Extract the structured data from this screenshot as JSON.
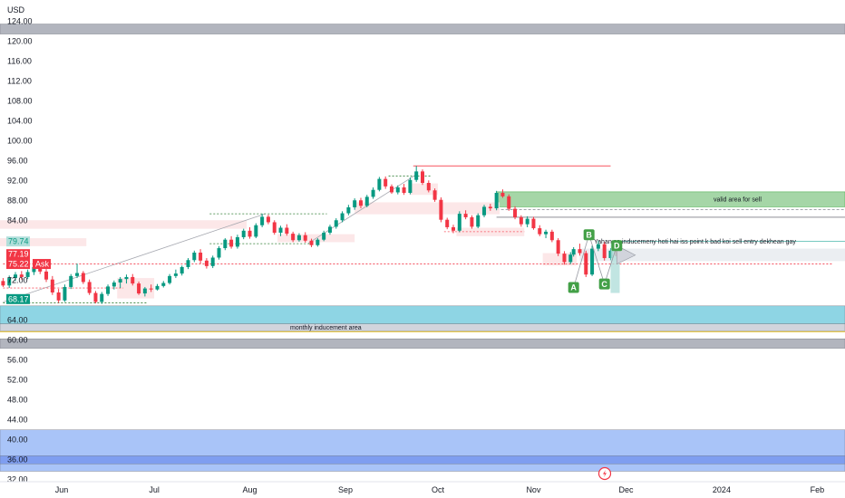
{
  "chart_data": {
    "type": "candlestick",
    "currency": "USD",
    "y_ticks": [
      124,
      120,
      116,
      112,
      108,
      104,
      100,
      96,
      92,
      88,
      84,
      80,
      76,
      72,
      68,
      64,
      60,
      56,
      52,
      48,
      44,
      40,
      36,
      32
    ],
    "y_tick_labels": [
      "124.00",
      "120.00",
      "116.00",
      "112.00",
      "108.00",
      "104.00",
      "100.00",
      "96.00",
      "92.00",
      "88.00",
      "84.00",
      "",
      "",
      "72.00",
      "",
      "64.00",
      "60.00",
      "56.00",
      "52.00",
      "48.00",
      "44.00",
      "40.00",
      "36.00",
      "32.00"
    ],
    "ylim": [
      31.5,
      127.5
    ],
    "x_labels": [
      "Jun",
      "Jul",
      "Aug",
      "Sep",
      "Oct",
      "Nov",
      "Dec",
      "2024",
      "Feb"
    ],
    "x_label_days": [
      0,
      30,
      61,
      92,
      122,
      153,
      183,
      214,
      245
    ],
    "xlim": [
      -20,
      254
    ],
    "price_labels": [
      {
        "value": 79.74,
        "text": "79.74",
        "color": "#26a69a",
        "light": true
      },
      {
        "value": 77.19,
        "text": "77.19",
        "color": "#f23645"
      },
      {
        "value": 75.22,
        "text": "75.22",
        "color": "#f23645",
        "extra": "Ask"
      },
      {
        "value": 68.17,
        "text": "68.17",
        "color": "#089981"
      }
    ],
    "zones": [
      {
        "from": 121.4,
        "to": 123.4,
        "color": "#b2b5be",
        "label": ""
      },
      {
        "from": 58.3,
        "to": 60.2,
        "color": "#b2b5be",
        "label": ""
      },
      {
        "from": 63.2,
        "to": 66.8,
        "color": "#8ed5e4",
        "label": ""
      },
      {
        "from": 61.8,
        "to": 63.2,
        "color": "#d1d4dc",
        "label": "monthly inducement area"
      },
      {
        "from": 36.1,
        "to": 41.9,
        "color": "#a9c4f8",
        "label": ""
      },
      {
        "from": 33.6,
        "to": 36.1,
        "color": "#a9c4f8",
        "label": ""
      },
      {
        "from": 35.1,
        "to": 36.7,
        "color": "#7f9ef0",
        "label": ""
      }
    ],
    "sell_zone": {
      "from": 86.7,
      "to": 89.7,
      "start_day": 141,
      "label": "valid area for sell"
    },
    "swing_high_level": 94.9,
    "annotation": "Yahan se inducemeny hoti hai iss point k bad koi sell entry dekhean gay",
    "pattern_points": [
      {
        "label": "A",
        "day": 166,
        "value": 70.5
      },
      {
        "label": "B",
        "day": 171,
        "value": 81.1
      },
      {
        "label": "C",
        "day": 176,
        "value": 71.2
      },
      {
        "label": "D",
        "day": 180,
        "value": 78.9
      }
    ],
    "candles": [
      {
        "day": -19,
        "o": 71.8,
        "h": 72.4,
        "l": 70.6,
        "c": 70.9
      },
      {
        "day": -17,
        "o": 70.9,
        "h": 72.9,
        "l": 70.4,
        "c": 72.4
      },
      {
        "day": -15,
        "o": 72.4,
        "h": 73.6,
        "l": 71.8,
        "c": 73.1
      },
      {
        "day": -13,
        "o": 73.1,
        "h": 73.8,
        "l": 72.1,
        "c": 72.6
      },
      {
        "day": -11,
        "o": 72.6,
        "h": 74.1,
        "l": 72.2,
        "c": 73.6
      },
      {
        "day": -9,
        "o": 73.6,
        "h": 74.9,
        "l": 73.0,
        "c": 74.6
      },
      {
        "day": -7,
        "o": 74.6,
        "h": 75.2,
        "l": 73.2,
        "c": 73.7
      },
      {
        "day": -5,
        "o": 73.7,
        "h": 74.2,
        "l": 71.6,
        "c": 72.1
      },
      {
        "day": -3,
        "o": 72.1,
        "h": 72.8,
        "l": 69.0,
        "c": 69.5
      },
      {
        "day": -1,
        "o": 69.5,
        "h": 70.2,
        "l": 67.4,
        "c": 67.9
      },
      {
        "day": 1,
        "o": 67.9,
        "h": 71.1,
        "l": 67.6,
        "c": 70.6
      },
      {
        "day": 3,
        "o": 70.6,
        "h": 73.2,
        "l": 70.2,
        "c": 72.8
      },
      {
        "day": 5,
        "o": 72.8,
        "h": 75.3,
        "l": 72.4,
        "c": 73.4
      },
      {
        "day": 7,
        "o": 73.4,
        "h": 73.8,
        "l": 71.2,
        "c": 71.6
      },
      {
        "day": 9,
        "o": 71.6,
        "h": 72.1,
        "l": 69.0,
        "c": 69.4
      },
      {
        "day": 11,
        "o": 69.4,
        "h": 69.8,
        "l": 67.3,
        "c": 67.6
      },
      {
        "day": 13,
        "o": 67.6,
        "h": 69.6,
        "l": 67.2,
        "c": 69.2
      },
      {
        "day": 15,
        "o": 69.2,
        "h": 71.1,
        "l": 68.8,
        "c": 70.7
      },
      {
        "day": 17,
        "o": 70.7,
        "h": 71.9,
        "l": 70.1,
        "c": 71.5
      },
      {
        "day": 19,
        "o": 71.5,
        "h": 72.6,
        "l": 70.4,
        "c": 72.2
      },
      {
        "day": 21,
        "o": 72.2,
        "h": 73.1,
        "l": 71.3,
        "c": 72.6
      },
      {
        "day": 23,
        "o": 72.6,
        "h": 73.2,
        "l": 70.9,
        "c": 71.3
      },
      {
        "day": 25,
        "o": 71.3,
        "h": 71.7,
        "l": 69.0,
        "c": 69.3
      },
      {
        "day": 27,
        "o": 69.3,
        "h": 70.6,
        "l": 68.7,
        "c": 70.3
      },
      {
        "day": 29,
        "o": 70.3,
        "h": 71.1,
        "l": 69.6,
        "c": 70.1
      },
      {
        "day": 31,
        "o": 70.1,
        "h": 71.2,
        "l": 69.9,
        "c": 70.8
      },
      {
        "day": 33,
        "o": 70.8,
        "h": 71.8,
        "l": 70.5,
        "c": 71.4
      },
      {
        "day": 35,
        "o": 71.4,
        "h": 73.2,
        "l": 71.1,
        "c": 72.8
      },
      {
        "day": 37,
        "o": 72.8,
        "h": 74.1,
        "l": 72.4,
        "c": 73.3
      },
      {
        "day": 39,
        "o": 73.3,
        "h": 74.9,
        "l": 72.9,
        "c": 74.6
      },
      {
        "day": 41,
        "o": 74.6,
        "h": 76.4,
        "l": 74.2,
        "c": 76.0
      },
      {
        "day": 43,
        "o": 76.0,
        "h": 77.9,
        "l": 75.6,
        "c": 77.5
      },
      {
        "day": 45,
        "o": 77.5,
        "h": 78.2,
        "l": 75.3,
        "c": 75.9
      },
      {
        "day": 47,
        "o": 75.9,
        "h": 76.4,
        "l": 74.3,
        "c": 74.8
      },
      {
        "day": 49,
        "o": 74.8,
        "h": 76.9,
        "l": 74.4,
        "c": 76.5
      },
      {
        "day": 51,
        "o": 76.5,
        "h": 78.8,
        "l": 76.1,
        "c": 78.4
      },
      {
        "day": 53,
        "o": 78.4,
        "h": 80.4,
        "l": 78.0,
        "c": 80.1
      },
      {
        "day": 55,
        "o": 80.1,
        "h": 80.8,
        "l": 78.3,
        "c": 78.7
      },
      {
        "day": 57,
        "o": 78.7,
        "h": 81.1,
        "l": 78.3,
        "c": 80.6
      },
      {
        "day": 59,
        "o": 80.6,
        "h": 82.3,
        "l": 80.2,
        "c": 81.9
      },
      {
        "day": 61,
        "o": 81.9,
        "h": 82.6,
        "l": 80.3,
        "c": 80.7
      },
      {
        "day": 63,
        "o": 80.7,
        "h": 83.4,
        "l": 80.4,
        "c": 83.0
      },
      {
        "day": 65,
        "o": 83.0,
        "h": 85.3,
        "l": 82.6,
        "c": 84.7
      },
      {
        "day": 67,
        "o": 84.7,
        "h": 85.1,
        "l": 83.2,
        "c": 83.6
      },
      {
        "day": 69,
        "o": 83.6,
        "h": 84.0,
        "l": 81.1,
        "c": 81.5
      },
      {
        "day": 71,
        "o": 81.5,
        "h": 82.9,
        "l": 80.8,
        "c": 82.5
      },
      {
        "day": 73,
        "o": 82.5,
        "h": 83.2,
        "l": 80.9,
        "c": 81.3
      },
      {
        "day": 75,
        "o": 81.3,
        "h": 81.7,
        "l": 79.6,
        "c": 80.0
      },
      {
        "day": 77,
        "o": 80.0,
        "h": 81.4,
        "l": 79.7,
        "c": 81.0
      },
      {
        "day": 79,
        "o": 81.0,
        "h": 81.6,
        "l": 79.5,
        "c": 79.9
      },
      {
        "day": 81,
        "o": 79.9,
        "h": 80.3,
        "l": 78.6,
        "c": 79.0
      },
      {
        "day": 83,
        "o": 79.0,
        "h": 80.4,
        "l": 78.7,
        "c": 80.1
      },
      {
        "day": 85,
        "o": 80.1,
        "h": 81.9,
        "l": 79.8,
        "c": 81.5
      },
      {
        "day": 87,
        "o": 81.5,
        "h": 83.1,
        "l": 81.1,
        "c": 82.7
      },
      {
        "day": 89,
        "o": 82.7,
        "h": 84.4,
        "l": 82.3,
        "c": 84.0
      },
      {
        "day": 91,
        "o": 84.0,
        "h": 85.8,
        "l": 83.6,
        "c": 85.4
      },
      {
        "day": 93,
        "o": 85.4,
        "h": 87.1,
        "l": 85.0,
        "c": 86.6
      },
      {
        "day": 95,
        "o": 86.6,
        "h": 88.4,
        "l": 86.1,
        "c": 88.0
      },
      {
        "day": 97,
        "o": 88.0,
        "h": 88.5,
        "l": 86.4,
        "c": 86.9
      },
      {
        "day": 99,
        "o": 86.9,
        "h": 89.1,
        "l": 86.6,
        "c": 88.7
      },
      {
        "day": 101,
        "o": 88.7,
        "h": 90.6,
        "l": 88.3,
        "c": 90.1
      },
      {
        "day": 103,
        "o": 90.1,
        "h": 92.7,
        "l": 89.8,
        "c": 92.3
      },
      {
        "day": 105,
        "o": 92.3,
        "h": 92.8,
        "l": 90.3,
        "c": 90.8
      },
      {
        "day": 107,
        "o": 90.8,
        "h": 91.2,
        "l": 89.3,
        "c": 89.6
      },
      {
        "day": 109,
        "o": 89.6,
        "h": 91.0,
        "l": 89.2,
        "c": 90.6
      },
      {
        "day": 111,
        "o": 90.6,
        "h": 91.3,
        "l": 89.1,
        "c": 89.5
      },
      {
        "day": 113,
        "o": 89.5,
        "h": 92.6,
        "l": 89.2,
        "c": 92.1
      },
      {
        "day": 115,
        "o": 92.1,
        "h": 94.9,
        "l": 91.7,
        "c": 93.8
      },
      {
        "day": 117,
        "o": 93.8,
        "h": 94.2,
        "l": 91.1,
        "c": 91.5
      },
      {
        "day": 119,
        "o": 91.5,
        "h": 92.0,
        "l": 89.6,
        "c": 90.0
      },
      {
        "day": 121,
        "o": 90.0,
        "h": 90.4,
        "l": 87.7,
        "c": 88.1
      },
      {
        "day": 123,
        "o": 88.1,
        "h": 88.6,
        "l": 83.6,
        "c": 84.1
      },
      {
        "day": 125,
        "o": 84.1,
        "h": 84.5,
        "l": 82.2,
        "c": 82.6
      },
      {
        "day": 127,
        "o": 82.6,
        "h": 83.1,
        "l": 81.4,
        "c": 81.9
      },
      {
        "day": 129,
        "o": 81.9,
        "h": 85.8,
        "l": 81.6,
        "c": 85.3
      },
      {
        "day": 131,
        "o": 85.3,
        "h": 86.0,
        "l": 84.2,
        "c": 84.6
      },
      {
        "day": 133,
        "o": 84.6,
        "h": 85.0,
        "l": 82.3,
        "c": 82.7
      },
      {
        "day": 135,
        "o": 82.7,
        "h": 85.4,
        "l": 82.4,
        "c": 85.0
      },
      {
        "day": 137,
        "o": 85.0,
        "h": 87.1,
        "l": 84.6,
        "c": 86.7
      },
      {
        "day": 139,
        "o": 86.7,
        "h": 87.3,
        "l": 85.9,
        "c": 86.4
      },
      {
        "day": 141,
        "o": 86.4,
        "h": 89.9,
        "l": 86.0,
        "c": 89.5
      },
      {
        "day": 143,
        "o": 89.5,
        "h": 90.2,
        "l": 88.5,
        "c": 88.8
      },
      {
        "day": 145,
        "o": 88.8,
        "h": 89.2,
        "l": 85.9,
        "c": 86.3
      },
      {
        "day": 147,
        "o": 86.3,
        "h": 86.8,
        "l": 84.2,
        "c": 84.6
      },
      {
        "day": 149,
        "o": 84.6,
        "h": 85.0,
        "l": 82.7,
        "c": 83.2
      },
      {
        "day": 151,
        "o": 83.2,
        "h": 84.8,
        "l": 82.6,
        "c": 84.3
      },
      {
        "day": 153,
        "o": 84.3,
        "h": 84.7,
        "l": 82.1,
        "c": 82.4
      },
      {
        "day": 155,
        "o": 82.4,
        "h": 83.0,
        "l": 80.8,
        "c": 81.2
      },
      {
        "day": 157,
        "o": 81.2,
        "h": 82.1,
        "l": 80.4,
        "c": 81.7
      },
      {
        "day": 159,
        "o": 81.7,
        "h": 82.1,
        "l": 79.6,
        "c": 80.0
      },
      {
        "day": 161,
        "o": 80.0,
        "h": 80.4,
        "l": 76.8,
        "c": 77.3
      },
      {
        "day": 163,
        "o": 77.3,
        "h": 77.8,
        "l": 75.1,
        "c": 75.6
      },
      {
        "day": 165,
        "o": 75.6,
        "h": 77.6,
        "l": 75.2,
        "c": 77.1
      },
      {
        "day": 166,
        "o": 77.1,
        "h": 78.6,
        "l": 76.7,
        "c": 78.2
      },
      {
        "day": 168,
        "o": 78.2,
        "h": 79.3,
        "l": 76.9,
        "c": 77.4
      },
      {
        "day": 170,
        "o": 77.4,
        "h": 77.9,
        "l": 72.6,
        "c": 73.1
      },
      {
        "day": 172,
        "o": 73.1,
        "h": 78.9,
        "l": 72.8,
        "c": 78.3
      },
      {
        "day": 174,
        "o": 78.3,
        "h": 79.9,
        "l": 77.8,
        "c": 79.2
      },
      {
        "day": 176,
        "o": 79.2,
        "h": 79.6,
        "l": 75.9,
        "c": 76.4
      },
      {
        "day": 178,
        "o": 76.4,
        "h": 78.4,
        "l": 76.0,
        "c": 77.9
      },
      {
        "day": 180,
        "o": 77.9,
        "h": 78.3,
        "l": 76.2,
        "c": 76.8
      }
    ]
  }
}
